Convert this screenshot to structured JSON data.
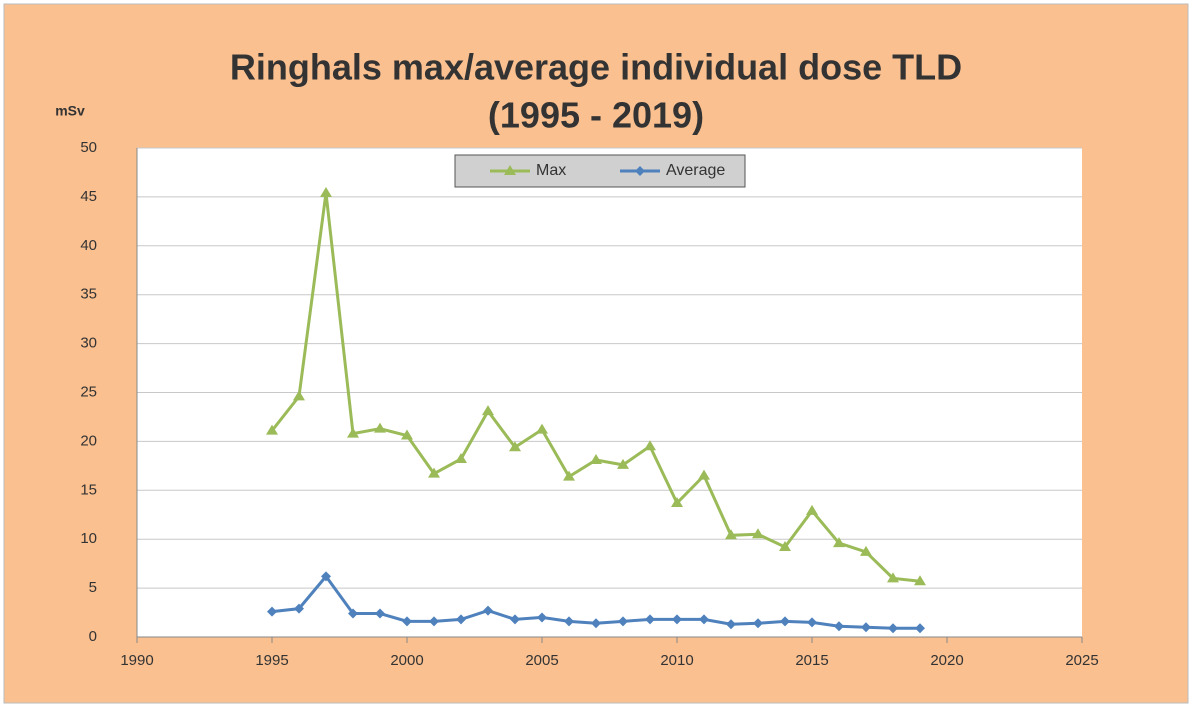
{
  "chart_data": {
    "type": "line",
    "title": "Ringhals max/average individual dose TLD",
    "subtitle": "(1995 - 2019)",
    "y_label": "mSv",
    "x": [
      1995,
      1996,
      1997,
      1998,
      1999,
      2000,
      2001,
      2002,
      2003,
      2004,
      2005,
      2006,
      2007,
      2008,
      2009,
      2010,
      2011,
      2012,
      2013,
      2014,
      2015,
      2016,
      2017,
      2018,
      2019
    ],
    "series": [
      {
        "name": "Max",
        "color": "#9bbb59",
        "marker": "triangle",
        "values": [
          21.1,
          24.6,
          45.4,
          20.8,
          21.3,
          20.6,
          16.7,
          18.2,
          23.1,
          19.4,
          21.2,
          16.4,
          18.1,
          17.6,
          19.5,
          13.7,
          16.5,
          10.4,
          10.5,
          9.2,
          12.9,
          9.6,
          8.7,
          6.0,
          5.7
        ]
      },
      {
        "name": "Average",
        "color": "#4f81bd",
        "marker": "diamond",
        "values": [
          2.6,
          2.9,
          6.2,
          2.4,
          2.4,
          1.6,
          1.6,
          1.8,
          2.7,
          1.8,
          2.0,
          1.6,
          1.4,
          1.6,
          1.8,
          1.8,
          1.8,
          1.3,
          1.4,
          1.6,
          1.5,
          1.1,
          1.0,
          0.9,
          0.9
        ]
      }
    ],
    "xlim": [
      1990,
      2025
    ],
    "xticks": [
      1990,
      1995,
      2000,
      2005,
      2010,
      2015,
      2020,
      2025
    ],
    "ylim": [
      0,
      50
    ],
    "yticks": [
      0,
      5,
      10,
      15,
      20,
      25,
      30,
      35,
      40,
      45,
      50
    ],
    "grid": true,
    "legend": "top"
  }
}
